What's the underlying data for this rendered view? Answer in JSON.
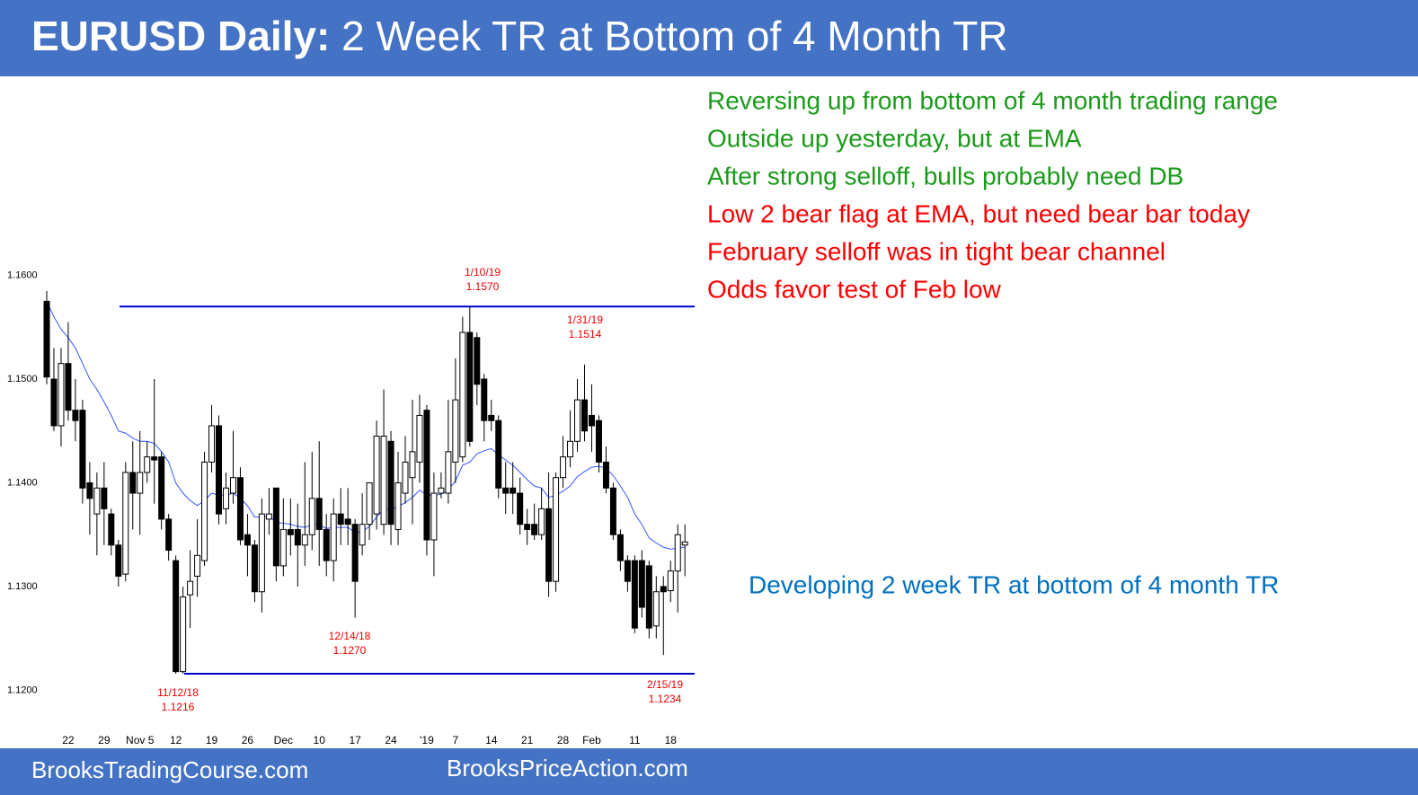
{
  "header": {
    "title_bold": "EURUSD Daily:",
    "title": "2 Week TR at Bottom of 4 Month TR"
  },
  "footer": {
    "left": "BrooksTradingCourse.com",
    "right": "BrooksPriceAction.com"
  },
  "commentary": [
    {
      "text": "Reversing up from bottom of 4 month trading range",
      "color": "#1a9a1a"
    },
    {
      "text": "Outside up yesterday, but at EMA",
      "color": "#1a9a1a"
    },
    {
      "text": "After strong selloff, bulls probably need DB",
      "color": "#1a9a1a"
    },
    {
      "text": "Low 2 bear flag at EMA, but need bear bar today",
      "color": "#ff0000"
    },
    {
      "text": "February selloff was in tight bear channel",
      "color": "#ff0000"
    },
    {
      "text": "Odds favor test of Feb low",
      "color": "#ff0000"
    }
  ],
  "side_note": {
    "text": "Developing 2 week TR at bottom of 4 month TR",
    "color": "#0070c0"
  },
  "chart_data": {
    "type": "candlestick",
    "categories": [
      null,
      null,
      null,
      "22",
      null,
      null,
      null,
      null,
      "29",
      null,
      null,
      null,
      null,
      "Nov 5",
      null,
      null,
      null,
      null,
      "12",
      null,
      null,
      null,
      null,
      "19",
      null,
      null,
      null,
      null,
      "26",
      null,
      null,
      null,
      null,
      "Dec",
      null,
      null,
      null,
      null,
      "10",
      null,
      null,
      null,
      null,
      "17",
      null,
      null,
      null,
      null,
      "24",
      null,
      null,
      null,
      null,
      "'19",
      null,
      null,
      null,
      "7",
      null,
      null,
      null,
      null,
      "14",
      null,
      null,
      null,
      null,
      "21",
      null,
      null,
      null,
      null,
      "28",
      null,
      null,
      null,
      "Feb",
      null,
      null,
      null,
      null,
      null,
      "11",
      null,
      null,
      null,
      null,
      "18",
      null,
      null
    ],
    "open": [
      1.1575,
      1.15,
      1.1455,
      1.1515,
      1.147,
      1.147,
      1.14,
      1.137,
      1.1395,
      1.137,
      1.134,
      1.1312,
      1.141,
      1.139,
      1.141,
      1.1425,
      1.1425,
      1.1365,
      1.1325,
      1.1218,
      1.1292,
      1.131,
      1.1325,
      1.142,
      1.1455,
      1.1375,
      1.139,
      1.1405,
      1.135,
      1.134,
      1.1295,
      1.1365,
      1.1395,
      1.132,
      1.1355,
      1.1355,
      1.134,
      1.135,
      1.1385,
      1.1355,
      1.1325,
      1.137,
      1.1365,
      1.136,
      1.134,
      1.136,
      1.137,
      1.136,
      1.144,
      1.1355,
      1.139,
      1.1405,
      1.142,
      1.147,
      1.1345,
      1.139,
      1.139,
      1.142,
      1.1425,
      1.1545,
      1.154,
      1.15,
      1.1465,
      1.146,
      1.1395,
      1.1395,
      1.139,
      1.136,
      1.136,
      1.135,
      1.1375,
      1.1305,
      1.1405,
      1.1425,
      1.144,
      1.148,
      1.1465,
      1.146,
      1.142,
      1.1395,
      1.135,
      1.1325,
      1.1325,
      1.1325,
      1.132,
      1.1262,
      1.13,
      1.1296,
      1.1315,
      1.134
    ],
    "high": [
      1.1585,
      1.153,
      1.153,
      1.1555,
      1.15,
      1.148,
      1.142,
      1.141,
      1.142,
      1.1375,
      1.1345,
      1.142,
      1.144,
      1.145,
      1.144,
      1.15,
      1.143,
      1.137,
      1.133,
      1.13,
      1.1335,
      1.1365,
      1.143,
      1.1475,
      1.1465,
      1.141,
      1.145,
      1.1415,
      1.137,
      1.1345,
      1.1385,
      1.1395,
      1.1395,
      1.1385,
      1.1385,
      1.138,
      1.142,
      1.143,
      1.144,
      1.137,
      1.1385,
      1.1395,
      1.1395,
      1.1365,
      1.139,
      1.14,
      1.146,
      1.149,
      1.145,
      1.143,
      1.1445,
      1.148,
      1.1485,
      1.1475,
      1.141,
      1.141,
      1.148,
      1.152,
      1.156,
      1.157,
      1.1545,
      1.1505,
      1.148,
      1.1465,
      1.142,
      1.142,
      1.1405,
      1.1375,
      1.138,
      1.1395,
      1.141,
      1.141,
      1.1445,
      1.147,
      1.15,
      1.1514,
      1.1495,
      1.1465,
      1.1435,
      1.14,
      1.1355,
      1.133,
      1.133,
      1.1335,
      1.1325,
      1.131,
      1.131,
      1.1325,
      1.136,
      1.136
    ],
    "low": [
      1.1495,
      1.145,
      1.1435,
      1.146,
      1.144,
      1.138,
      1.135,
      1.133,
      1.134,
      1.133,
      1.13,
      1.1305,
      1.1355,
      1.135,
      1.14,
      1.138,
      1.1355,
      1.1325,
      1.1216,
      1.1216,
      1.126,
      1.129,
      1.132,
      1.141,
      1.136,
      1.136,
      1.138,
      1.134,
      1.131,
      1.1285,
      1.1275,
      1.135,
      1.1305,
      1.131,
      1.133,
      1.13,
      1.132,
      1.1335,
      1.132,
      1.131,
      1.1305,
      1.134,
      1.134,
      1.127,
      1.133,
      1.1345,
      1.1355,
      1.135,
      1.134,
      1.134,
      1.138,
      1.136,
      1.14,
      1.133,
      1.131,
      1.1385,
      1.138,
      1.14,
      1.142,
      1.1435,
      1.1475,
      1.144,
      1.145,
      1.1385,
      1.137,
      1.137,
      1.135,
      1.134,
      1.1345,
      1.1345,
      1.129,
      1.1295,
      1.1395,
      1.1415,
      1.143,
      1.144,
      1.143,
      1.141,
      1.139,
      1.1345,
      1.1315,
      1.1295,
      1.1255,
      1.127,
      1.125,
      1.125,
      1.1234,
      1.1285,
      1.1275,
      1.131
    ],
    "close": [
      1.1502,
      1.1455,
      1.1515,
      1.147,
      1.146,
      1.1395,
      1.1385,
      1.1395,
      1.1375,
      1.134,
      1.131,
      1.141,
      1.139,
      1.141,
      1.1425,
      1.1422,
      1.1365,
      1.1335,
      1.1218,
      1.129,
      1.1305,
      1.133,
      1.142,
      1.1455,
      1.137,
      1.1395,
      1.1405,
      1.1345,
      1.134,
      1.1295,
      1.137,
      1.137,
      1.132,
      1.1355,
      1.135,
      1.134,
      1.135,
      1.1385,
      1.1355,
      1.1325,
      1.137,
      1.136,
      1.136,
      1.1305,
      1.136,
      1.14,
      1.1445,
      1.1445,
      1.136,
      1.14,
      1.142,
      1.143,
      1.1465,
      1.1345,
      1.139,
      1.1395,
      1.143,
      1.148,
      1.1545,
      1.144,
      1.1495,
      1.146,
      1.146,
      1.1395,
      1.139,
      1.139,
      1.136,
      1.1355,
      1.135,
      1.1375,
      1.1305,
      1.1405,
      1.1425,
      1.144,
      1.148,
      1.145,
      1.1455,
      1.142,
      1.1395,
      1.135,
      1.1325,
      1.1305,
      1.126,
      1.128,
      1.126,
      1.1295,
      1.1295,
      1.1315,
      1.135,
      1.1343
    ],
    "ema": {
      "color": "#3355ff",
      "values": [
        1.1575,
        1.156,
        1.1548,
        1.154,
        1.153,
        1.1515,
        1.15,
        1.149,
        1.1478,
        1.1465,
        1.145,
        1.1448,
        1.1443,
        1.144,
        1.144,
        1.1438,
        1.143,
        1.142,
        1.14,
        1.139,
        1.1383,
        1.1378,
        1.1383,
        1.139,
        1.1388,
        1.1388,
        1.139,
        1.1385,
        1.1378,
        1.1367,
        1.1367,
        1.1368,
        1.1362,
        1.1361,
        1.136,
        1.1358,
        1.1357,
        1.136,
        1.136,
        1.1356,
        1.1357,
        1.1357,
        1.1357,
        1.1352,
        1.1353,
        1.1358,
        1.1367,
        1.1375,
        1.1374,
        1.1377,
        1.1381,
        1.1386,
        1.1393,
        1.1388,
        1.1388,
        1.1389,
        1.1393,
        1.1402,
        1.1417,
        1.142,
        1.1428,
        1.1431,
        1.1433,
        1.1427,
        1.1422,
        1.1417,
        1.141,
        1.1403,
        1.1397,
        1.1395,
        1.1386,
        1.1388,
        1.1392,
        1.1397,
        1.1406,
        1.1411,
        1.1415,
        1.1416,
        1.1414,
        1.1407,
        1.1397,
        1.1386,
        1.137,
        1.136,
        1.1347,
        1.1342,
        1.1338,
        1.1336,
        1.1337,
        1.1338
      ]
    },
    "levels": {
      "color": "#0000cc",
      "values": [
        1.157,
        1.1216
      ]
    },
    "ylim": [
      1.1164,
      1.161
    ],
    "yticks": [
      {
        "value": 1.12,
        "label": "1.1200"
      },
      {
        "value": 1.13,
        "label": "1.1300"
      },
      {
        "value": 1.14,
        "label": "1.1400"
      },
      {
        "value": 1.15,
        "label": "1.1500"
      },
      {
        "value": 1.16,
        "label": "1.1600"
      }
    ],
    "annotations": [
      {
        "date": "1/10/19",
        "price": "1.1570"
      },
      {
        "date": "1/31/19",
        "price": "1.1514"
      },
      {
        "date": "12/14/18",
        "price": "1.1270"
      },
      {
        "date": "11/12/18",
        "price": "1.1216"
      },
      {
        "date": "2/15/19",
        "price": "1.1234"
      }
    ],
    "annotation_color": "#ee0000"
  }
}
